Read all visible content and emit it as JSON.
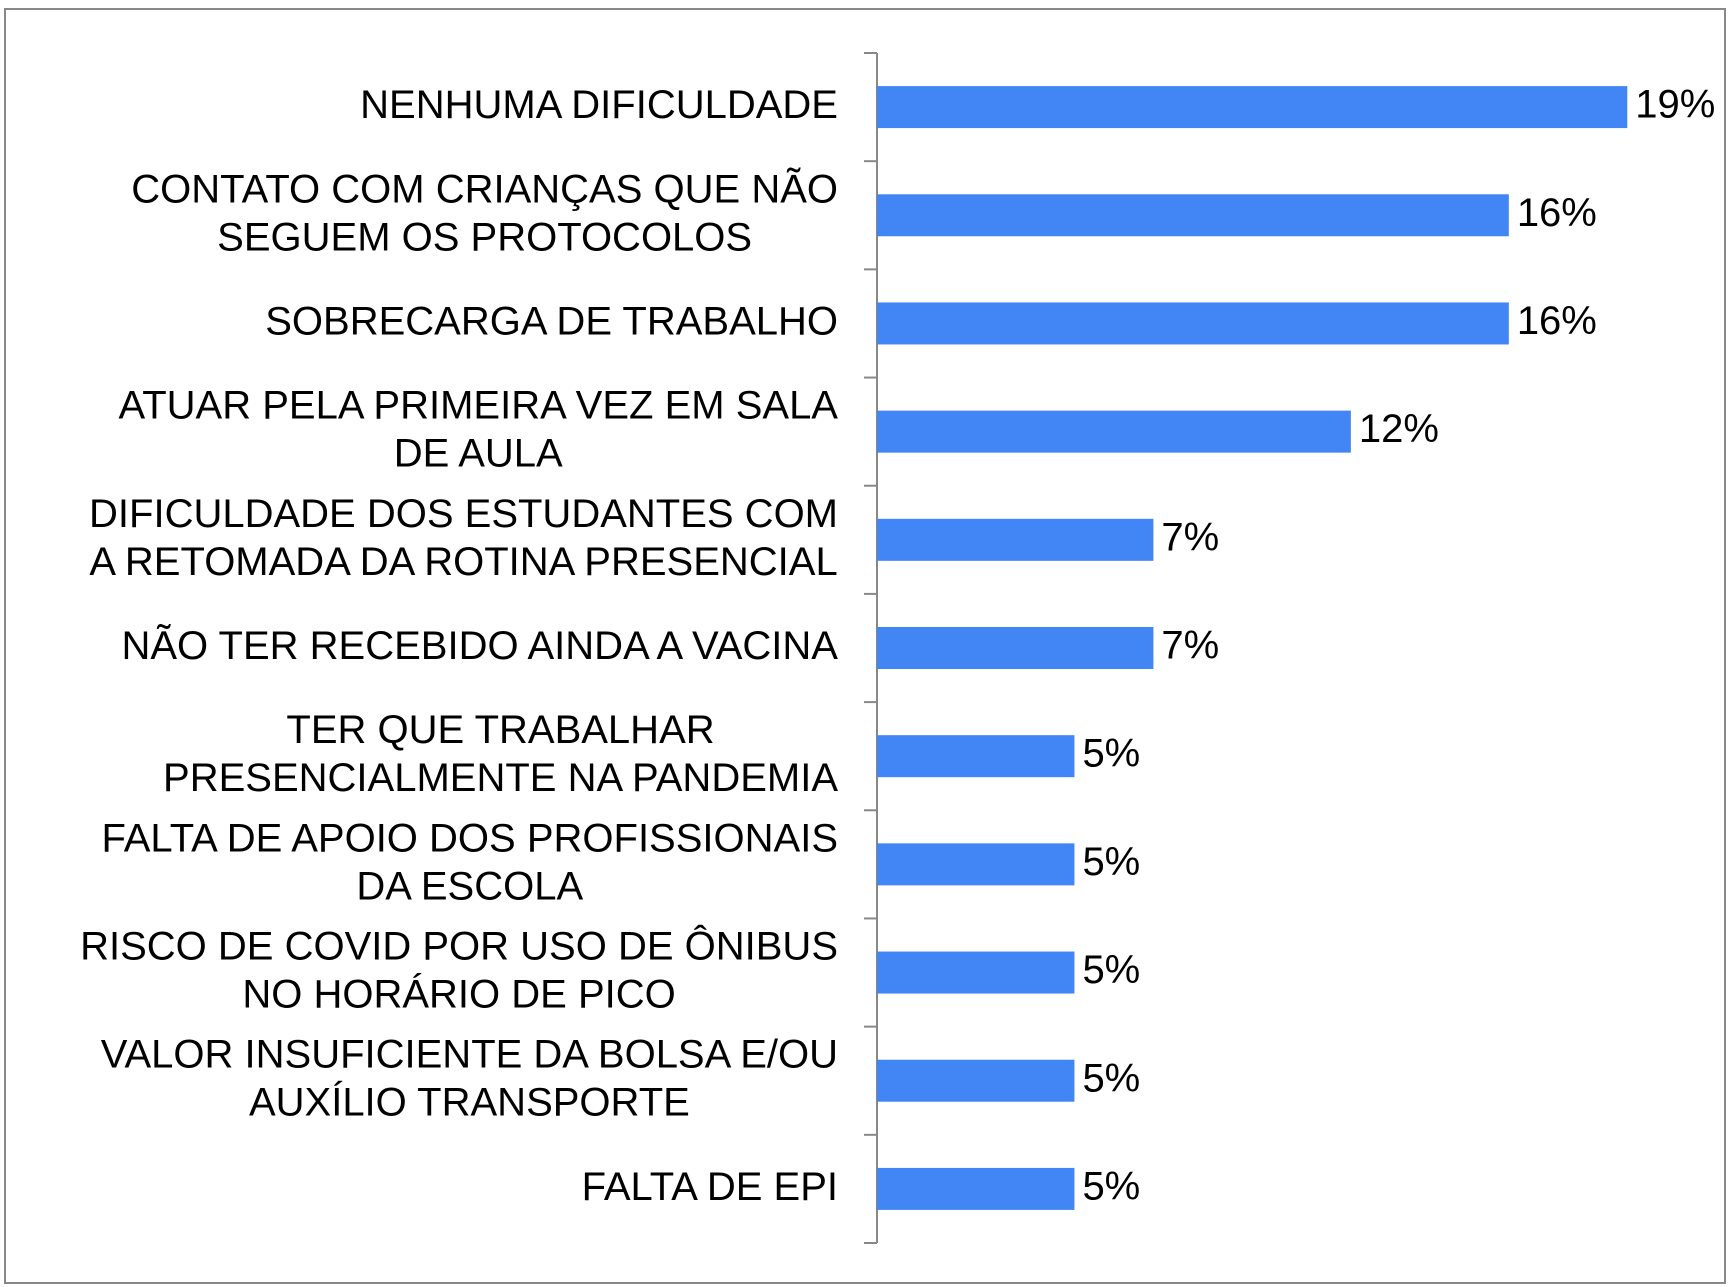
{
  "chart_data": {
    "type": "bar",
    "orientation": "horizontal",
    "categories": [
      "NENHUMA DIFICULDADE",
      "CONTATO COM CRIANÇAS QUE NÃO\nSEGUEM OS PROTOCOLOS",
      "SOBRECARGA DE TRABALHO",
      "ATUAR PELA PRIMEIRA VEZ EM SALA\nDE AULA",
      "DIFICULDADE DOS ESTUDANTES COM\nA RETOMADA DA ROTINA PRESENCIAL",
      "NÃO TER RECEBIDO AINDA A VACINA",
      "TER QUE TRABALHAR\nPRESENCIALMENTE NA PANDEMIA",
      "FALTA DE APOIO DOS PROFISSIONAIS\nDA ESCOLA",
      "RISCO DE COVID POR USO DE ÔNIBUS\nNO HORÁRIO DE PICO",
      "VALOR INSUFICIENTE DA BOLSA E/OU\nAUXÍLIO TRANSPORTE",
      "FALTA DE EPI"
    ],
    "values": [
      19,
      16,
      16,
      12,
      7,
      7,
      5,
      5,
      5,
      5,
      5
    ],
    "value_labels": [
      "19%",
      "16%",
      "16%",
      "12%",
      "7%",
      "7%",
      "5%",
      "5%",
      "5%",
      "5%",
      "5%"
    ],
    "color": "#4285f4",
    "xlim": [
      0,
      21.5
    ]
  }
}
